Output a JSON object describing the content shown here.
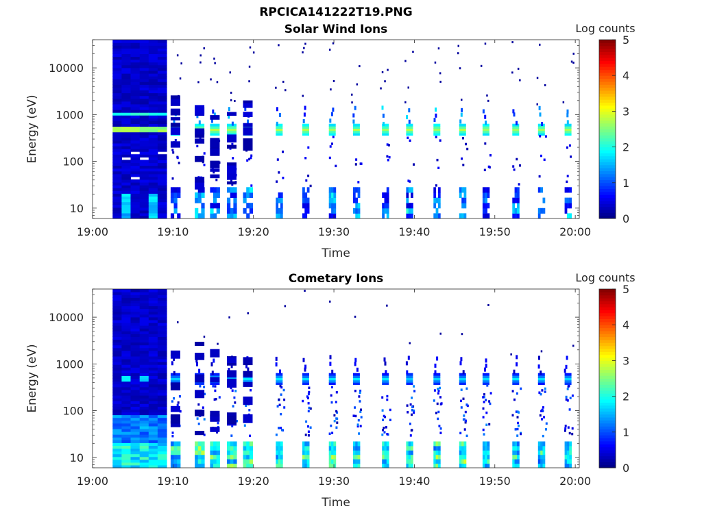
{
  "figure": {
    "title": "RPCICA141222T19.PNG"
  },
  "colorbar": {
    "label": "Log counts",
    "ticks": [
      "0",
      "1",
      "2",
      "3",
      "4",
      "5"
    ],
    "range": [
      0,
      5
    ],
    "colormap": "jet"
  },
  "chart_data": [
    {
      "type": "heatmap",
      "title": "Solar Wind Ions",
      "xlabel": "Time",
      "ylabel": "Energy (eV)",
      "xticks": [
        "19:00",
        "19:10",
        "19:20",
        "19:30",
        "19:40",
        "19:50",
        "20:00"
      ],
      "yticks": [
        "10",
        "100",
        "1000",
        "10000"
      ],
      "xlim": [
        "19:00",
        "20:00"
      ],
      "ylim": [
        6,
        40000
      ],
      "yscale": "log",
      "data_start": "19:02.5",
      "dense_until": "19:09.2",
      "scan_times_min": [
        10.3,
        13.3,
        15.2,
        17.3,
        19.3,
        23.2,
        26.5,
        29.8,
        32.8,
        36.4,
        39.4,
        42.8,
        46.0,
        48.9,
        52.6,
        55.8,
        59.1
      ],
      "peak_energy_eV": 480,
      "peak_log_counts": 2.6,
      "secondary_energy_eV": 1050,
      "low_energy_band_eV": [
        6,
        28
      ]
    },
    {
      "type": "heatmap",
      "title": "Cometary Ions",
      "xlabel": "Time",
      "ylabel": "Energy (eV)",
      "xticks": [
        "19:00",
        "19:10",
        "19:20",
        "19:30",
        "19:40",
        "19:50",
        "20:00"
      ],
      "yticks": [
        "10",
        "100",
        "1000",
        "10000"
      ],
      "xlim": [
        "19:00",
        "20:00"
      ],
      "ylim": [
        6,
        40000
      ],
      "yscale": "log",
      "data_start": "19:02.5",
      "dense_until": "19:09.2",
      "scan_times_min": [
        10.3,
        13.3,
        15.2,
        17.3,
        19.3,
        23.2,
        26.5,
        29.8,
        32.8,
        36.4,
        39.4,
        42.8,
        46.0,
        48.9,
        52.6,
        55.8,
        59.1
      ],
      "peak_energy_eV": 480,
      "peak_log_counts": 1.6,
      "low_energy_band_eV": [
        6,
        22
      ],
      "low_energy_log_counts": 2.3
    }
  ]
}
